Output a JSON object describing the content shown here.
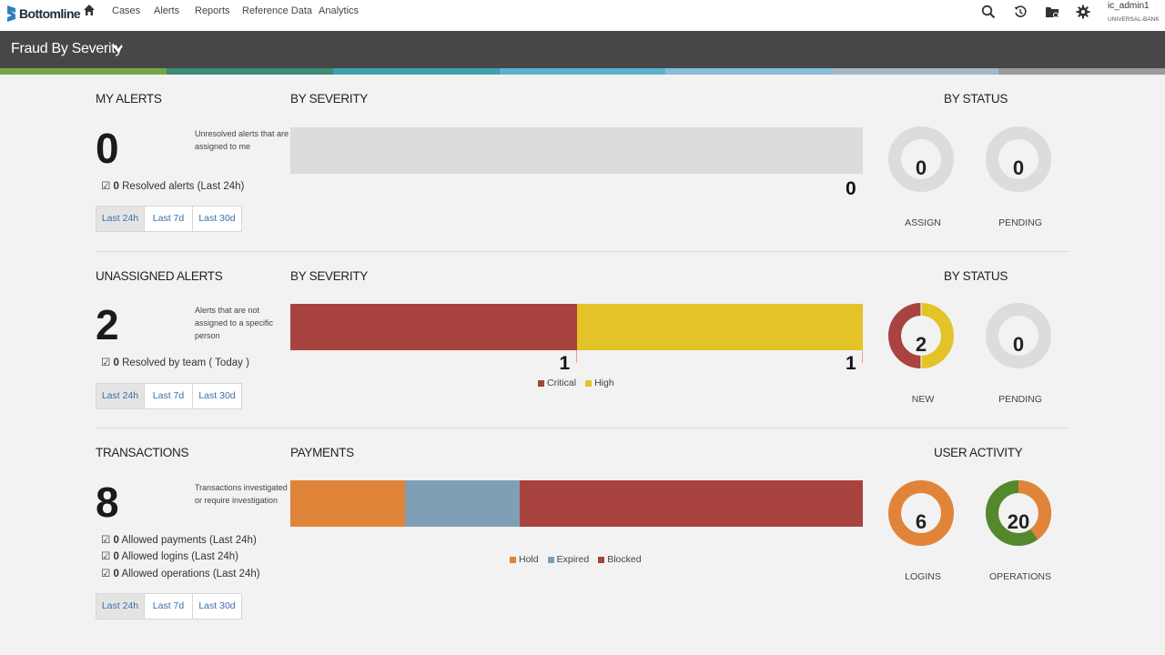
{
  "nav": {
    "brand": "Bottomline",
    "items": [
      "Cases",
      "Alerts",
      "Reports",
      "Reference Data",
      "Analytics"
    ],
    "icons": [
      "search-icon",
      "history-icon",
      "folder-icon",
      "gear-icon"
    ],
    "user": "ic_admin1",
    "bank": "UNIVERSAL-BANK"
  },
  "titlebar": {
    "title": "Fraud By Severity"
  },
  "colors": {
    "critical": "#a8433f",
    "high": "#e3c327",
    "hold": "#e0843a",
    "expired": "#7f9fb5",
    "blocked": "#a8433f",
    "donut_empty": "#dcdcdc",
    "operations_green": "#55872c",
    "stripes": [
      "#72a843",
      "#3d8a77",
      "#3aa1b0",
      "#5db1cf",
      "#87bdd8",
      "#a4b7c4",
      "#9b9b9b"
    ]
  },
  "range_options": [
    "Last 24h",
    "Last 7d",
    "Last 30d"
  ],
  "my_alerts": {
    "title": "MY ALERTS",
    "count": "0",
    "description": "Unresolved alerts that are assigned to me",
    "checks": [
      {
        "value": "0",
        "text": "Resolved alerts (Last 24h)"
      }
    ],
    "severity_title": "BY SEVERITY",
    "severity_total": "0",
    "status_title": "BY STATUS",
    "status": [
      {
        "label": "ASSIGN",
        "value": "0"
      },
      {
        "label": "PENDING",
        "value": "0"
      }
    ]
  },
  "unassigned_alerts": {
    "title": "UNASSIGNED ALERTS",
    "count": "2",
    "description": "Alerts that are not assigned to a specific person",
    "checks": [
      {
        "value": "0",
        "text": "Resolved by team ( Today )"
      }
    ],
    "severity_title": "BY SEVERITY",
    "severity": [
      {
        "name": "Critical",
        "value": 1
      },
      {
        "name": "High",
        "value": 1
      }
    ],
    "status_title": "BY STATUS",
    "status": [
      {
        "label": "NEW",
        "value": "2"
      },
      {
        "label": "PENDING",
        "value": "0"
      }
    ]
  },
  "transactions": {
    "title": "TRANSACTIONS",
    "count": "8",
    "description": "Transactions investigated or require investigation",
    "checks": [
      {
        "value": "0",
        "text": "Allowed payments (Last 24h)"
      },
      {
        "value": "0",
        "text": "Allowed logins (Last 24h)"
      },
      {
        "value": "0",
        "text": "Allowed operations (Last 24h)"
      }
    ],
    "payments_title": "PAYMENTS",
    "payments": [
      {
        "name": "Hold",
        "value": 0.2
      },
      {
        "name": "Expired",
        "value": 0.2
      },
      {
        "name": "Blocked",
        "value": 0.6
      }
    ],
    "activity_title": "USER ACTIVITY",
    "activity": [
      {
        "label": "LOGINS",
        "value": "6"
      },
      {
        "label": "OPERATIONS",
        "value": "20",
        "share_orange": 0.4
      }
    ]
  }
}
